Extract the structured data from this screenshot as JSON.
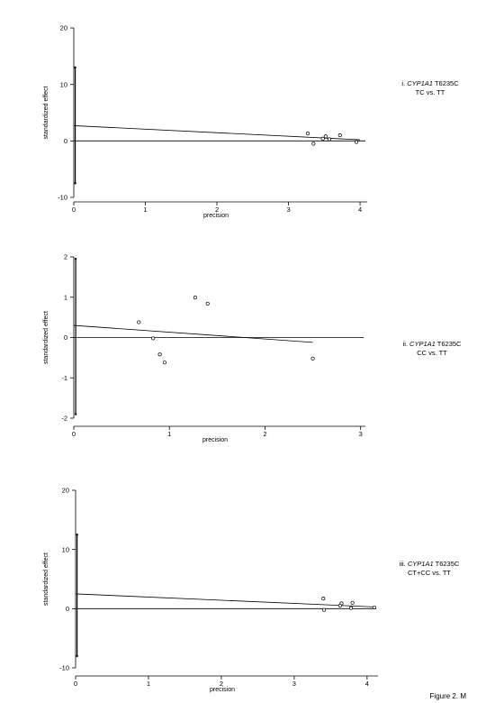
{
  "chart_data": [
    {
      "type": "scatter",
      "xlabel": "precision",
      "ylabel": "standardized effect",
      "xlim": [
        0,
        4.1
      ],
      "ylim": [
        -10,
        20
      ],
      "xticks": [
        "0",
        "1",
        "2",
        "3",
        "4"
      ],
      "yticks": [
        "-10",
        "0",
        "10",
        "20"
      ],
      "label_roman": "i.",
      "label_gene": "CYP1A1",
      "label_variant": "T6235C",
      "label_comparison": "TC vs. TT",
      "points": [
        {
          "x": 3.27,
          "y": 1.3
        },
        {
          "x": 3.35,
          "y": -0.5
        },
        {
          "x": 3.48,
          "y": 0.4
        },
        {
          "x": 3.52,
          "y": 0.8
        },
        {
          "x": 3.57,
          "y": 0.3
        },
        {
          "x": 3.72,
          "y": 1.0
        },
        {
          "x": 3.95,
          "y": -0.2
        }
      ],
      "ci_bar": {
        "x": 0.02,
        "y_low": -7.5,
        "y_high": 13
      },
      "regression": {
        "x0": 0,
        "y0": 2.7,
        "x1": 4.0,
        "y1": 0.2
      }
    },
    {
      "type": "scatter",
      "xlabel": "precision",
      "ylabel": "standardized effect",
      "xlim": [
        0,
        3.05
      ],
      "ylim": [
        -2,
        2
      ],
      "xticks": [
        "0",
        "1",
        "2",
        "3"
      ],
      "yticks": [
        "-2",
        "-1",
        "0",
        "1",
        "2"
      ],
      "label_roman": "ii.",
      "label_gene": "CYP1A1",
      "label_variant": "T6235C",
      "label_comparison": "CC vs. TT",
      "points": [
        {
          "x": 0.68,
          "y": 0.38
        },
        {
          "x": 0.83,
          "y": -0.02
        },
        {
          "x": 0.9,
          "y": -0.42
        },
        {
          "x": 0.95,
          "y": -0.62
        },
        {
          "x": 1.27,
          "y": 0.99
        },
        {
          "x": 1.4,
          "y": 0.84
        },
        {
          "x": 2.5,
          "y": -0.52
        }
      ],
      "ci_bar": {
        "x": 0.02,
        "y_low": -1.9,
        "y_high": 1.95
      },
      "regression": {
        "x0": 0,
        "y0": 0.3,
        "x1": 2.5,
        "y1": -0.12
      }
    },
    {
      "type": "scatter",
      "xlabel": "precision",
      "ylabel": "standardized effect",
      "xlim": [
        0,
        4.15
      ],
      "ylim": [
        -10,
        20
      ],
      "xticks": [
        "0",
        "1",
        "2",
        "3",
        "4"
      ],
      "yticks": [
        "-10",
        "0",
        "10",
        "20"
      ],
      "label_roman": "iii.",
      "label_gene": "CYP1A1",
      "label_variant": "T6235C",
      "label_comparison": "CT+CC vs. TT",
      "points": [
        {
          "x": 3.4,
          "y": 1.7
        },
        {
          "x": 3.41,
          "y": -0.2
        },
        {
          "x": 3.63,
          "y": 0.5
        },
        {
          "x": 3.65,
          "y": 0.9
        },
        {
          "x": 3.78,
          "y": 0.1
        },
        {
          "x": 3.8,
          "y": 1.0
        },
        {
          "x": 4.1,
          "y": 0.2
        }
      ],
      "ci_bar": {
        "x": 0.02,
        "y_low": -8,
        "y_high": 12.5
      },
      "regression": {
        "x0": 0,
        "y0": 2.5,
        "x1": 4.1,
        "y1": 0.3
      }
    }
  ],
  "figure_caption": "Figure 2. M"
}
